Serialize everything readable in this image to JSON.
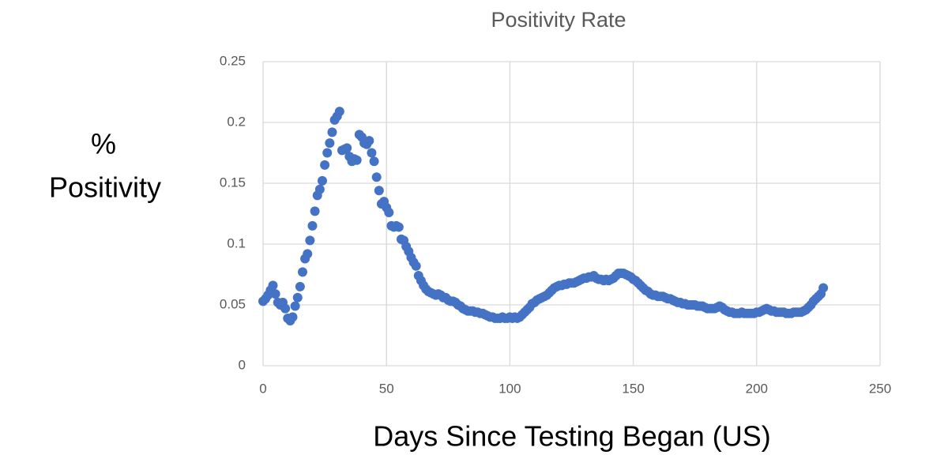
{
  "chart_data": {
    "type": "scatter",
    "title": "Positivity Rate",
    "xlabel": "Days Since Testing Began (US)",
    "ylabel_lines": [
      "%",
      "Positivity"
    ],
    "xlim": [
      0,
      250
    ],
    "xticks": [
      0,
      50,
      100,
      150,
      200,
      250
    ],
    "ylim": [
      0,
      0.25
    ],
    "yticks": [
      0,
      0.05,
      0.1,
      0.15,
      0.2,
      0.25
    ],
    "grid": true,
    "series": [
      {
        "color": "#4472c4",
        "x": [
          0,
          1,
          2,
          3,
          4,
          5,
          6,
          7,
          8,
          9,
          10,
          11,
          12,
          13,
          14,
          15,
          16,
          17,
          18,
          19,
          20,
          21,
          22,
          23,
          24,
          25,
          26,
          27,
          28,
          29,
          30,
          31,
          32,
          33,
          34,
          35,
          36,
          37,
          38,
          39,
          40,
          41,
          42,
          43,
          44,
          45,
          46,
          47,
          48,
          49,
          50,
          51,
          52,
          53,
          54,
          55,
          56,
          57,
          58,
          59,
          60,
          61,
          62,
          63,
          64,
          65,
          66,
          67,
          68,
          69,
          70,
          71,
          72,
          73,
          74,
          75,
          76,
          77,
          78,
          79,
          80,
          81,
          82,
          83,
          84,
          85,
          86,
          87,
          88,
          89,
          90,
          91,
          92,
          93,
          94,
          95,
          96,
          97,
          98,
          99,
          100,
          101,
          102,
          103,
          104,
          105,
          106,
          107,
          108,
          109,
          110,
          111,
          112,
          113,
          114,
          115,
          116,
          117,
          118,
          119,
          120,
          121,
          122,
          123,
          124,
          125,
          126,
          127,
          128,
          129,
          130,
          131,
          132,
          133,
          134,
          135,
          136,
          137,
          138,
          139,
          140,
          141,
          142,
          143,
          144,
          145,
          146,
          147,
          148,
          149,
          150,
          151,
          152,
          153,
          154,
          155,
          156,
          157,
          158,
          159,
          160,
          161,
          162,
          163,
          164,
          165,
          166,
          167,
          168,
          169,
          170,
          171,
          172,
          173,
          174,
          175,
          176,
          177,
          178,
          179,
          180,
          181,
          182,
          183,
          184,
          185,
          186,
          187,
          188,
          189,
          190,
          191,
          192,
          193,
          194,
          195,
          196,
          197,
          198,
          199,
          200,
          201,
          202,
          203,
          204,
          205,
          206,
          207,
          208,
          209,
          210,
          211,
          212,
          213,
          214,
          215,
          216,
          217,
          218,
          219,
          220,
          221,
          222,
          223,
          224,
          225,
          226,
          227
        ],
        "values": [
          0.053,
          0.055,
          0.058,
          0.062,
          0.066,
          0.059,
          0.052,
          0.05,
          0.052,
          0.047,
          0.039,
          0.037,
          0.04,
          0.049,
          0.056,
          0.065,
          0.077,
          0.088,
          0.092,
          0.103,
          0.115,
          0.127,
          0.14,
          0.145,
          0.152,
          0.165,
          0.175,
          0.183,
          0.192,
          0.202,
          0.205,
          0.209,
          0.177,
          0.178,
          0.179,
          0.172,
          0.168,
          0.17,
          0.169,
          0.19,
          0.188,
          0.183,
          0.182,
          0.185,
          0.175,
          0.168,
          0.155,
          0.144,
          0.133,
          0.135,
          0.13,
          0.126,
          0.115,
          0.114,
          0.115,
          0.114,
          0.104,
          0.103,
          0.098,
          0.094,
          0.089,
          0.085,
          0.082,
          0.074,
          0.07,
          0.066,
          0.063,
          0.061,
          0.06,
          0.059,
          0.058,
          0.059,
          0.058,
          0.056,
          0.056,
          0.054,
          0.053,
          0.053,
          0.052,
          0.05,
          0.049,
          0.047,
          0.046,
          0.045,
          0.045,
          0.045,
          0.044,
          0.044,
          0.043,
          0.043,
          0.042,
          0.041,
          0.04,
          0.04,
          0.039,
          0.039,
          0.039,
          0.04,
          0.039,
          0.039,
          0.04,
          0.039,
          0.04,
          0.039,
          0.04,
          0.042,
          0.044,
          0.046,
          0.048,
          0.051,
          0.052,
          0.054,
          0.055,
          0.056,
          0.057,
          0.058,
          0.06,
          0.062,
          0.064,
          0.065,
          0.066,
          0.066,
          0.067,
          0.067,
          0.068,
          0.068,
          0.068,
          0.069,
          0.07,
          0.071,
          0.072,
          0.072,
          0.073,
          0.073,
          0.074,
          0.072,
          0.071,
          0.071,
          0.07,
          0.071,
          0.07,
          0.071,
          0.072,
          0.074,
          0.076,
          0.076,
          0.076,
          0.075,
          0.074,
          0.073,
          0.071,
          0.07,
          0.068,
          0.066,
          0.064,
          0.062,
          0.061,
          0.059,
          0.058,
          0.058,
          0.057,
          0.057,
          0.057,
          0.056,
          0.055,
          0.055,
          0.054,
          0.053,
          0.052,
          0.052,
          0.051,
          0.051,
          0.05,
          0.05,
          0.05,
          0.05,
          0.049,
          0.049,
          0.049,
          0.048,
          0.047,
          0.047,
          0.047,
          0.047,
          0.048,
          0.049,
          0.048,
          0.046,
          0.045,
          0.044,
          0.044,
          0.043,
          0.043,
          0.043,
          0.044,
          0.043,
          0.043,
          0.043,
          0.043,
          0.043,
          0.044,
          0.044,
          0.045,
          0.046,
          0.047,
          0.046,
          0.045,
          0.045,
          0.044,
          0.044,
          0.044,
          0.044,
          0.043,
          0.043,
          0.043,
          0.044,
          0.044,
          0.044,
          0.044,
          0.045,
          0.046,
          0.048,
          0.05,
          0.053,
          0.055,
          0.057,
          0.059,
          0.064
        ]
      }
    ]
  }
}
